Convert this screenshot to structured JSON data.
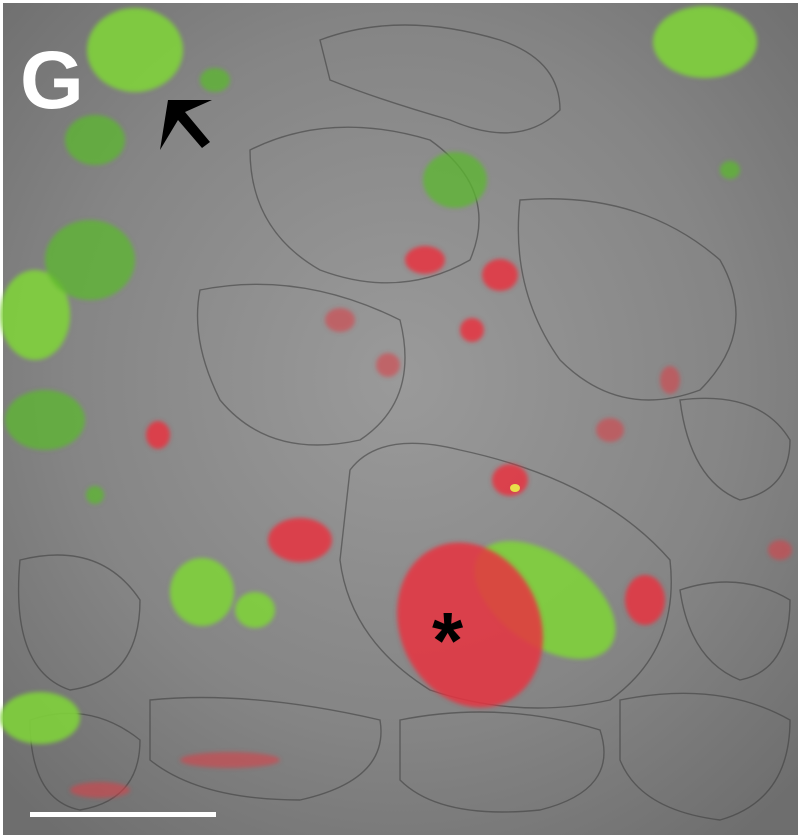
{
  "panel_label": "G",
  "marker": "*"
}
